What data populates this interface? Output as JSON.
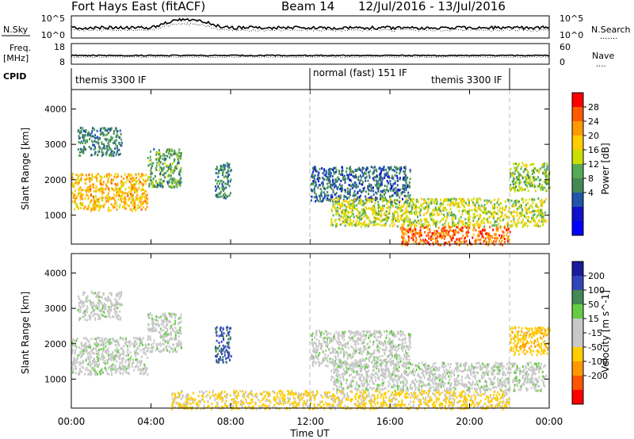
{
  "header": {
    "radar": "Fort Hays East (fitACF)",
    "beam": "Beam 14",
    "dates": "12/Jul/2016 - 13/Jul/2016"
  },
  "noise_panel": {
    "left_label": "N.Sky",
    "left_ticks": [
      "10^5",
      "10^0"
    ],
    "right_ticks": [
      "10^5",
      "10^0"
    ],
    "right_label": "N.Search",
    "right_dots": "......."
  },
  "freq_panel": {
    "left_label_1": "Freq.",
    "left_label_2": "[MHz]",
    "left_ticks": [
      "18",
      "8"
    ],
    "right_ticks": [
      "60",
      "0"
    ],
    "right_label": "Nave",
    "right_dots": "...."
  },
  "cpid_panel": {
    "label": "CPID",
    "programs": [
      {
        "name": "themis 3300 IF",
        "start_hour": 0,
        "end_hour": 12
      },
      {
        "name": "normal (fast) 151 IF",
        "start_hour": 12,
        "end_hour": 22
      },
      {
        "name": "themis 3300 IF",
        "start_hour": 22,
        "end_hour": 24
      }
    ]
  },
  "colorbars": {
    "power": {
      "label": "Power [dB]",
      "ticks": [
        "28",
        "24",
        "20",
        "16",
        "12",
        "8",
        "4"
      ],
      "colors": [
        "#ff0000",
        "#ff5a00",
        "#ff9900",
        "#ffcc00",
        "#ccdd00",
        "#55aa55",
        "#448855",
        "#2255aa",
        "#1111cc",
        "#0000ff"
      ]
    },
    "velocity": {
      "label": "Velocity [m s^-1]",
      "ticks": [
        "200",
        "100",
        "50",
        "15",
        "-15",
        "-50",
        "-100",
        "-200"
      ],
      "colors": [
        "#1a1a9a",
        "#3344bb",
        "#448855",
        "#66cc44",
        "#c8c8c8",
        "#c8c8c8",
        "#ffcc00",
        "#ff9900",
        "#ff5500",
        "#ff0000"
      ]
    }
  },
  "chart_data": [
    {
      "type": "heatmap",
      "name": "power",
      "xlabel": "Time UT",
      "ylabel": "Slant Range [km]",
      "xlim": [
        0,
        24
      ],
      "ylim": [
        180,
        4550
      ],
      "x_ticks": [
        "00:00",
        "04:00",
        "08:00",
        "12:00",
        "16:00",
        "20:00",
        "00:00"
      ],
      "y_ticks": [
        1000,
        2000,
        3000,
        4000
      ],
      "regions": [
        {
          "t0": 0.0,
          "t1": 3.8,
          "r0": 1150,
          "r1": 2200,
          "value": 20
        },
        {
          "t0": 0.3,
          "t1": 2.5,
          "r0": 2700,
          "r1": 3500,
          "value": 10
        },
        {
          "t0": 3.8,
          "t1": 5.5,
          "r0": 1800,
          "r1": 2900,
          "value": 12
        },
        {
          "t0": 7.2,
          "t1": 8.0,
          "r0": 1500,
          "r1": 2500,
          "value": 10
        },
        {
          "t0": 12.0,
          "t1": 17.0,
          "r0": 1400,
          "r1": 2400,
          "value": 8
        },
        {
          "t0": 13.0,
          "t1": 23.8,
          "r0": 700,
          "r1": 1500,
          "value": 16
        },
        {
          "t0": 16.5,
          "t1": 22.0,
          "r0": 180,
          "r1": 700,
          "value": 24
        },
        {
          "t0": 22.0,
          "t1": 24.0,
          "r0": 1700,
          "r1": 2500,
          "value": 14
        }
      ]
    },
    {
      "type": "heatmap",
      "name": "velocity",
      "xlabel": "Time UT",
      "ylabel": "Slant Range [km]",
      "xlim": [
        0,
        24
      ],
      "ylim": [
        180,
        4550
      ],
      "x_ticks": [
        "00:00",
        "04:00",
        "08:00",
        "12:00",
        "16:00",
        "20:00",
        "00:00"
      ],
      "y_ticks": [
        1000,
        2000,
        3000,
        4000
      ],
      "regions": [
        {
          "t0": 0.0,
          "t1": 3.8,
          "r0": 1150,
          "r1": 2200,
          "value": 0
        },
        {
          "t0": 0.3,
          "t1": 2.5,
          "r0": 2700,
          "r1": 3500,
          "value": 0
        },
        {
          "t0": 3.8,
          "t1": 5.5,
          "r0": 1800,
          "r1": 2900,
          "value": 0
        },
        {
          "t0": 7.2,
          "t1": 8.0,
          "r0": 1500,
          "r1": 2500,
          "value": 80
        },
        {
          "t0": 12.0,
          "t1": 17.0,
          "r0": 1400,
          "r1": 2400,
          "value": 0
        },
        {
          "t0": 13.0,
          "t1": 23.8,
          "r0": 700,
          "r1": 1500,
          "value": 0
        },
        {
          "t0": 5.0,
          "t1": 22.0,
          "r0": 180,
          "r1": 700,
          "value": -40
        },
        {
          "t0": 22.0,
          "t1": 24.0,
          "r0": 1700,
          "r1": 2500,
          "value": -60
        }
      ]
    }
  ]
}
